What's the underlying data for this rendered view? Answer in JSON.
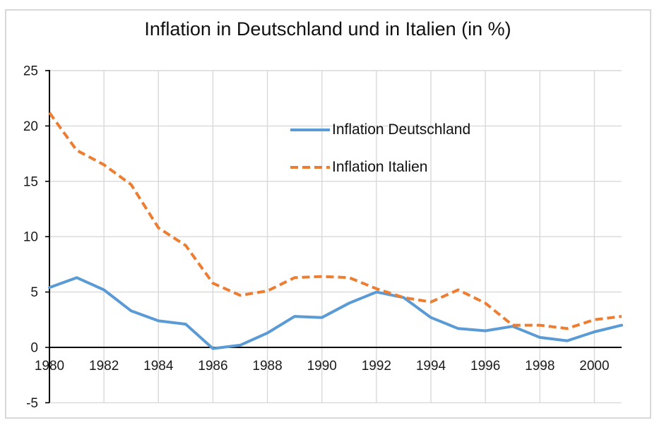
{
  "chart_data": {
    "type": "line",
    "title": "Inflation in Deutschland und in Italien (in %)",
    "xlabel": "",
    "ylabel": "",
    "x": [
      1980,
      1981,
      1982,
      1983,
      1984,
      1985,
      1986,
      1987,
      1988,
      1989,
      1990,
      1991,
      1992,
      1993,
      1994,
      1995,
      1996,
      1997,
      1998,
      1999,
      2000,
      2001
    ],
    "series": [
      {
        "name": "Inflation Deutschland",
        "color": "#5B9BD5",
        "style": "solid",
        "values": [
          5.4,
          6.3,
          5.2,
          3.3,
          2.4,
          2.1,
          -0.1,
          0.2,
          1.3,
          2.8,
          2.7,
          4.0,
          5.0,
          4.5,
          2.7,
          1.7,
          1.5,
          1.9,
          0.9,
          0.6,
          1.4,
          2.0
        ]
      },
      {
        "name": "Inflation Italien",
        "color": "#ED7D31",
        "style": "dashed",
        "values": [
          21.2,
          17.8,
          16.5,
          14.7,
          10.8,
          9.2,
          5.8,
          4.7,
          5.1,
          6.3,
          6.4,
          6.3,
          5.3,
          4.5,
          4.1,
          5.2,
          4.0,
          2.0,
          2.0,
          1.7,
          2.5,
          2.8
        ]
      }
    ],
    "xlim": [
      1980,
      2001
    ],
    "ylim": [
      -5,
      25
    ],
    "x_ticks": [
      1980,
      1982,
      1984,
      1986,
      1988,
      1990,
      1992,
      1994,
      1996,
      1998,
      2000
    ],
    "y_ticks": [
      25,
      20,
      15,
      10,
      5,
      0,
      -5
    ],
    "grid": true,
    "legend_position": "inside-upper-center",
    "colors": {
      "gridline": "#D9D9D9",
      "axis": "#000000",
      "tick_text": "#1a1a1a",
      "frame_border": "#D8D8D8",
      "background": "#FFFFFF"
    }
  }
}
